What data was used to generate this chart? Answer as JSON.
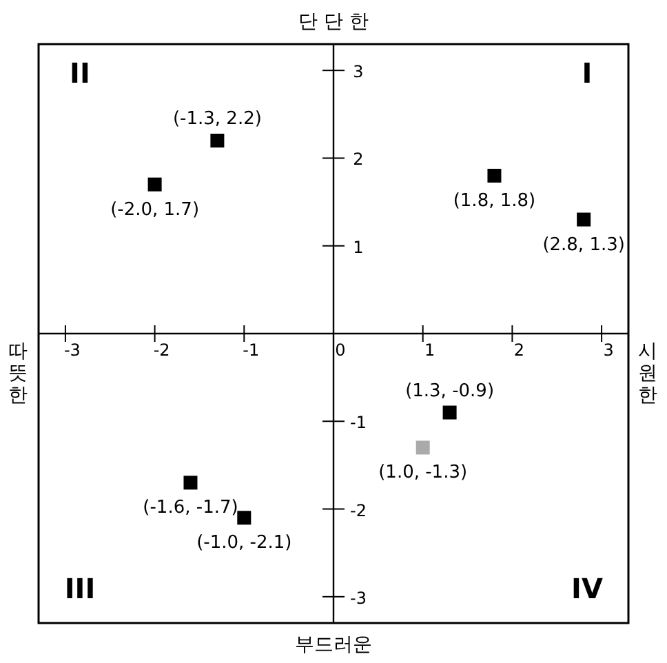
{
  "chart_data": {
    "type": "scatter",
    "x": [
      -2.0,
      -1.3,
      1.8,
      2.8,
      1.3,
      -1.6,
      -1.0,
      1.0
    ],
    "values": [
      1.7,
      2.2,
      1.8,
      1.3,
      -0.9,
      -1.7,
      -2.1,
      -1.3
    ],
    "colors": [
      "#000000",
      "#000000",
      "#000000",
      "#000000",
      "#000000",
      "#000000",
      "#000000",
      "#aaaaaa"
    ],
    "value_labels": [
      "(-2.0, 1.7)",
      "(-1.3, 2.2)",
      "(1.8, 1.8)",
      "(2.8, 1.3)",
      "(1.3, -0.9)",
      "(-1.6, -1.7)",
      "(-1.0, -2.1)",
      "(1.0, -1.3)"
    ],
    "marker": "square",
    "xlim": [
      -3.3,
      3.3
    ],
    "ylim": [
      -3.3,
      3.3
    ],
    "xticks": [
      -3,
      -2,
      -1,
      0,
      1,
      2,
      3
    ],
    "yticks": [
      -3,
      -2,
      -1,
      1,
      2,
      3
    ],
    "annotations": [
      "단 단 한",
      "부드러운",
      "따뜻한",
      "시원한",
      "II",
      "I",
      "III",
      "IV"
    ],
    "grid": false
  }
}
